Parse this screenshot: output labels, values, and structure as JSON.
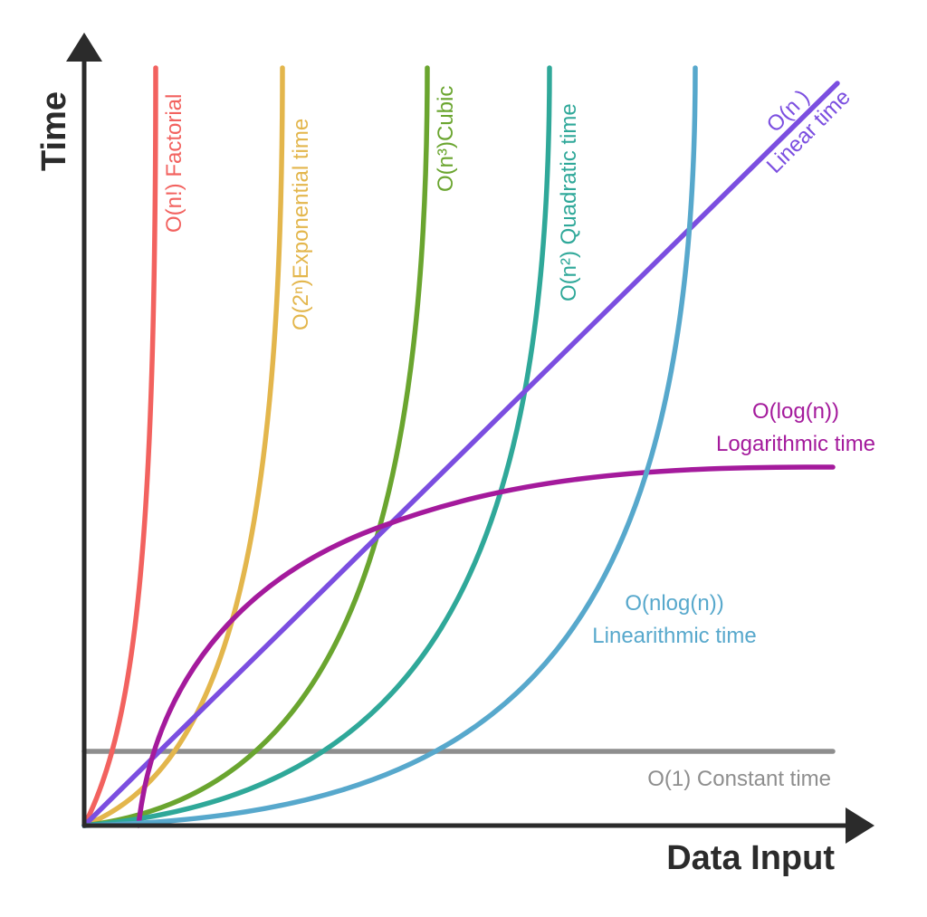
{
  "chart_data": {
    "type": "line",
    "title": "",
    "xlabel": "Data Input",
    "ylabel": "Time",
    "grid": false,
    "series": [
      {
        "id": "constant",
        "label_lines": [
          "O(1) Constant time"
        ],
        "color": "#8e8e8e"
      },
      {
        "id": "factorial",
        "label_lines": [
          "O(n!) Factorial"
        ],
        "color": "#f2625f"
      },
      {
        "id": "exponential",
        "label_lines": [
          "O(2ⁿ)Exponential time"
        ],
        "color": "#e3b64c"
      },
      {
        "id": "cubic",
        "label_lines": [
          "O(n³)Cubic"
        ],
        "color": "#6aa52f"
      },
      {
        "id": "quadratic",
        "label_lines": [
          "O(n²) Quadratic time"
        ],
        "color": "#2fa899"
      },
      {
        "id": "linear",
        "label_lines": [
          "O(n )",
          "Linear time"
        ],
        "color": "#7b4ee0"
      },
      {
        "id": "logarithmic",
        "label_lines": [
          "O(log(n))",
          "Logarithmic time"
        ],
        "color": "#a41a9c"
      },
      {
        "id": "linearithmic",
        "label_lines": [
          "O(nlog(n))",
          "Linearithmic time"
        ],
        "color": "#57a8cc"
      }
    ]
  },
  "colors": {
    "axis": "#2b2b2b"
  }
}
